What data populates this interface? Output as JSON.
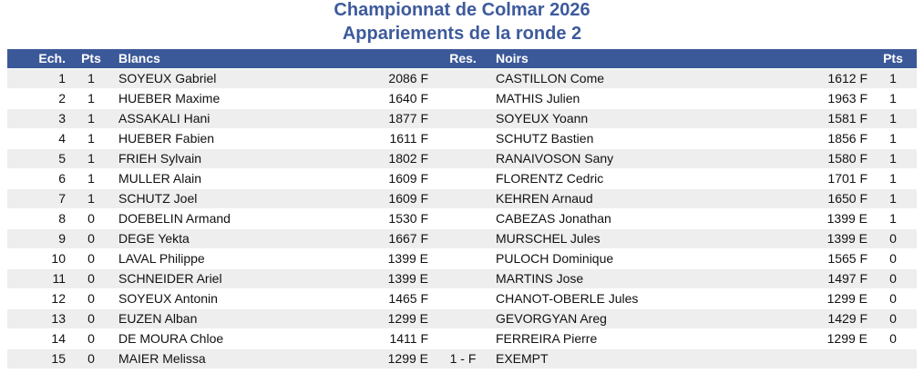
{
  "header": {
    "title": "Championnat de Colmar 2026",
    "subtitle": "Appariements de la ronde 2"
  },
  "table": {
    "columns": {
      "board": "Ech.",
      "white_pts": "Pts",
      "white": "Blancs",
      "result": "Res.",
      "black": "Noirs",
      "black_pts": "Pts"
    },
    "rows": [
      {
        "board": 1,
        "white_pts": 1,
        "white": "SOYEUX Gabriel",
        "white_elo": "2086 F",
        "black": "CASTILLON Come",
        "black_elo": "1612 F",
        "black_pts": 1
      },
      {
        "board": 2,
        "white_pts": 1,
        "white": "HUEBER Maxime",
        "white_elo": "1640 F",
        "black": "MATHIS Julien",
        "black_elo": "1963 F",
        "black_pts": 1
      },
      {
        "board": 3,
        "white_pts": 1,
        "white": "ASSAKALI Hani",
        "white_elo": "1877 F",
        "black": "SOYEUX Yoann",
        "black_elo": "1581 F",
        "black_pts": 1
      },
      {
        "board": 4,
        "white_pts": 1,
        "white": "HUEBER Fabien",
        "white_elo": "1611 F",
        "black": "SCHUTZ Bastien",
        "black_elo": "1856 F",
        "black_pts": 1
      },
      {
        "board": 5,
        "white_pts": 1,
        "white": "FRIEH Sylvain",
        "white_elo": "1802 F",
        "black": "RANAIVOSON Sany",
        "black_elo": "1580 F",
        "black_pts": 1
      },
      {
        "board": 6,
        "white_pts": 1,
        "white": "MULLER Alain",
        "white_elo": "1609 F",
        "black": "FLORENTZ Cedric",
        "black_elo": "1701 F",
        "black_pts": 1
      },
      {
        "board": 7,
        "white_pts": 1,
        "white": "SCHUTZ Joel",
        "white_elo": "1609 F",
        "black": "KEHREN Arnaud",
        "black_elo": "1650 F",
        "black_pts": 1
      },
      {
        "board": 8,
        "white_pts": 0,
        "white": "DOEBELIN Armand",
        "white_elo": "1530 F",
        "black": "CABEZAS Jonathan",
        "black_elo": "1399 E",
        "black_pts": 1
      },
      {
        "board": 9,
        "white_pts": 0,
        "white": "DEGE Yekta",
        "white_elo": "1667 F",
        "black": "MURSCHEL Jules",
        "black_elo": "1399 E",
        "black_pts": 0
      },
      {
        "board": 10,
        "white_pts": 0,
        "white": "LAVAL Philippe",
        "white_elo": "1399 E",
        "black": "PULOCH Dominique",
        "black_elo": "1565 F",
        "black_pts": 0
      },
      {
        "board": 11,
        "white_pts": 0,
        "white": "SCHNEIDER Ariel",
        "white_elo": "1399 E",
        "black": "MARTINS Jose",
        "black_elo": "1497 F",
        "black_pts": 0
      },
      {
        "board": 12,
        "white_pts": 0,
        "white": "SOYEUX Antonin",
        "white_elo": "1465 F",
        "black": "CHANOT-OBERLE Jules",
        "black_elo": "1299 E",
        "black_pts": 0
      },
      {
        "board": 13,
        "white_pts": 0,
        "white": "EUZEN Alban",
        "white_elo": "1299 E",
        "black": "GEVORGYAN Areg",
        "black_elo": "1429 F",
        "black_pts": 0
      },
      {
        "board": 14,
        "white_pts": 0,
        "white": "DE MOURA Chloe",
        "white_elo": "1411 F",
        "black": "FERREIRA Pierre",
        "black_elo": "1299 E",
        "black_pts": 0
      },
      {
        "board": 15,
        "white_pts": 0,
        "white": "MAIER Melissa",
        "white_elo": "1299 E",
        "result": "1 - F",
        "black": "EXEMPT"
      }
    ]
  }
}
